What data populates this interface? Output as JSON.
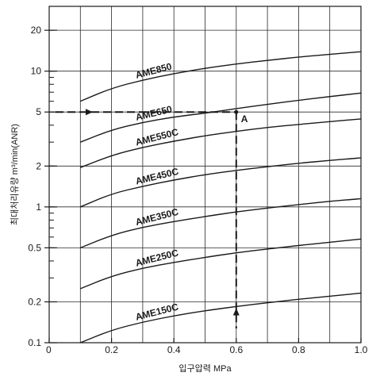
{
  "chart_data": {
    "type": "line",
    "title": "",
    "xlabel": "입구압력 MPa",
    "ylabel": "최대처리유량 m³/min(ANR)",
    "xlim": [
      0,
      1.0
    ],
    "ylim": [
      0.1,
      30
    ],
    "y_scale": "log",
    "grid": true,
    "x_ticks": [
      {
        "value": 0,
        "label": "0"
      },
      {
        "value": 0.2,
        "label": "0.2"
      },
      {
        "value": 0.4,
        "label": "0.4"
      },
      {
        "value": 0.6,
        "label": "0.6"
      },
      {
        "value": 0.8,
        "label": "0.8"
      },
      {
        "value": 1.0,
        "label": "1.0"
      }
    ],
    "y_ticks": [
      {
        "value": 0.1,
        "label": "0.1"
      },
      {
        "value": 0.2,
        "label": "0.2"
      },
      {
        "value": 0.5,
        "label": "0.5"
      },
      {
        "value": 1,
        "label": "1"
      },
      {
        "value": 2,
        "label": "2"
      },
      {
        "value": 5,
        "label": "5"
      },
      {
        "value": 10,
        "label": "10"
      },
      {
        "value": 20,
        "label": "20"
      }
    ],
    "x": [
      0.1,
      0.2,
      0.3,
      0.4,
      0.5,
      0.6,
      0.7,
      0.8,
      0.9,
      1.0
    ],
    "series": [
      {
        "name": "AME850",
        "values": [
          6.0,
          7.5,
          8.6,
          9.6,
          10.5,
          11.3,
          12.0,
          12.7,
          13.3,
          13.9
        ]
      },
      {
        "name": "AME650",
        "values": [
          3.0,
          3.7,
          4.2,
          4.6,
          4.9,
          5.3,
          5.7,
          6.1,
          6.5,
          6.9
        ]
      },
      {
        "name": "AME550C",
        "values": [
          1.95,
          2.4,
          2.75,
          3.05,
          3.35,
          3.6,
          3.85,
          4.05,
          4.25,
          4.45
        ]
      },
      {
        "name": "AME450C",
        "values": [
          1.0,
          1.25,
          1.42,
          1.58,
          1.73,
          1.86,
          1.98,
          2.1,
          2.2,
          2.3
        ]
      },
      {
        "name": "AME350C",
        "values": [
          0.5,
          0.62,
          0.71,
          0.78,
          0.85,
          0.92,
          0.98,
          1.04,
          1.1,
          1.15
        ]
      },
      {
        "name": "AME250C",
        "values": [
          0.25,
          0.31,
          0.355,
          0.39,
          0.425,
          0.46,
          0.49,
          0.52,
          0.55,
          0.58
        ]
      },
      {
        "name": "AME150C",
        "values": [
          0.1,
          0.124,
          0.142,
          0.158,
          0.172,
          0.185,
          0.197,
          0.209,
          0.22,
          0.232
        ]
      }
    ],
    "annotation": {
      "label": "A",
      "x": 0.6,
      "y": 5,
      "line_color": "#1a1a1a"
    }
  }
}
